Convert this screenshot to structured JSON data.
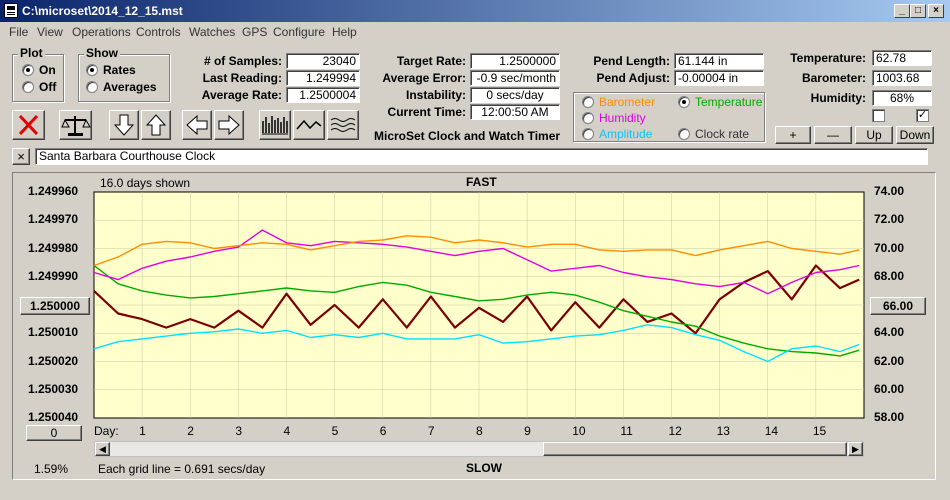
{
  "window": {
    "title": "C:\\microset\\2014_12_15.mst"
  },
  "menu": [
    "File",
    "View",
    "Operations",
    "Controls",
    "Watches",
    "GPS",
    "Configure",
    "Help"
  ],
  "plot": {
    "label": "Plot",
    "on": "On",
    "off": "Off",
    "selected": "On"
  },
  "show": {
    "label": "Show",
    "rates": "Rates",
    "averages": "Averages",
    "selected": "Rates"
  },
  "stats": {
    "samples_label": "# of Samples:",
    "samples": "23040",
    "last_label": "Last Reading:",
    "last": "1.249994",
    "avg_label": "Average Rate:",
    "avg": "1.2500004"
  },
  "rates": {
    "target_label": "Target Rate:",
    "target": "1.2500000",
    "error_label": "Average Error:",
    "error": "-0.9 sec/month",
    "instab_label": "Instability:",
    "instab": "0 secs/day",
    "time_label": "Current Time:",
    "time": "12:00:50 AM"
  },
  "app_title": "MicroSet Clock and Watch Timer",
  "pend": {
    "length_label": "Pend Length:",
    "length": "61.144 in",
    "adjust_label": "Pend Adjust:",
    "adjust": "-0.00004 in"
  },
  "sensor_options": {
    "barometer": "Barometer",
    "temperature": "Temperature",
    "humidity": "Humidity",
    "amplitude": "Amplitude",
    "clock_rate": "Clock rate",
    "selected": "Temperature"
  },
  "env": {
    "temp_label": "Temperature:",
    "temp": "62.78",
    "baro_label": "Barometer:",
    "baro": "1003.68",
    "hum_label": "Humidity:",
    "hum": "68%"
  },
  "env_buttons": {
    "plus": "+",
    "minus": "—",
    "up": "Up",
    "down": "Down"
  },
  "watch_name": "Santa Barbara Courthouse Clock",
  "close_x": "×",
  "chart_texts": {
    "days_shown": "16.0 days shown",
    "fast": "FAST",
    "slow": "SLOW",
    "grid_note": "Each grid line = 0.691 secs/day",
    "percent": "1.59%",
    "day_prefix": "Day:",
    "left_center_button": "1.250000",
    "right_center_button": "66.00",
    "bottom_left_button": "0"
  },
  "colors": {
    "rate": "#7a0000",
    "temperature": "#00aa00",
    "humidity": "#e000e0",
    "barometer": "#ff8c00",
    "amplitude": "#00e0ff",
    "plot_bg": "#ffffcc"
  },
  "chart_data": {
    "type": "line",
    "x_label": "Day",
    "x_ticks": [
      1,
      2,
      3,
      4,
      5,
      6,
      7,
      8,
      9,
      10,
      11,
      12,
      13,
      14,
      15
    ],
    "xlim": [
      0,
      16
    ],
    "y_left_ticks": [
      "1.249960",
      "1.249970",
      "1.249980",
      "1.249990",
      "1.250000",
      "1.250010",
      "1.250020",
      "1.250030",
      "1.250040"
    ],
    "y_left_lim": [
      1.24996,
      1.25004
    ],
    "y_left_inverted": true,
    "y_right_ticks": [
      "74.00",
      "72.00",
      "70.00",
      "68.00",
      "66.00",
      "64.00",
      "62.00",
      "60.00",
      "58.00"
    ],
    "y_right_lim": [
      58,
      74
    ],
    "series": [
      {
        "name": "Rate",
        "axis": "left",
        "x": [
          0,
          0.5,
          1,
          1.5,
          2,
          2.5,
          3,
          3.5,
          4,
          4.5,
          5,
          5.5,
          6,
          6.5,
          7,
          7.5,
          8,
          8.5,
          9,
          9.5,
          10,
          10.5,
          11,
          11.5,
          12,
          12.5,
          13,
          13.5,
          14,
          14.5,
          15,
          15.5,
          15.9
        ],
        "y": [
          1.249995,
          1.250003,
          1.250005,
          1.250008,
          1.250005,
          1.250008,
          1.250002,
          1.250008,
          1.249996,
          1.250007,
          1.25,
          1.250008,
          1.249998,
          1.250008,
          1.249997,
          1.250008,
          1.250001,
          1.250006,
          1.249997,
          1.250009,
          1.249999,
          1.250008,
          1.249998,
          1.250006,
          1.250003,
          1.25001,
          1.249998,
          1.249992,
          1.249988,
          1.249998,
          1.249986,
          1.249994,
          1.249991
        ]
      },
      {
        "name": "Temperature",
        "axis": "right",
        "x": [
          0,
          0.5,
          1,
          1.5,
          2,
          2.5,
          3,
          3.5,
          4,
          4.5,
          5,
          5.5,
          6,
          6.5,
          7,
          7.5,
          8,
          8.5,
          9,
          9.5,
          10,
          10.5,
          11,
          11.5,
          12,
          12.5,
          13,
          13.5,
          14,
          14.5,
          15,
          15.5,
          15.9
        ],
        "y": [
          68.8,
          67.5,
          67.0,
          66.7,
          66.5,
          66.6,
          66.8,
          67.0,
          67.2,
          67.0,
          66.9,
          67.3,
          67.6,
          67.4,
          66.9,
          66.6,
          66.3,
          66.4,
          66.7,
          66.9,
          66.7,
          66.2,
          65.6,
          65.2,
          64.8,
          64.5,
          63.8,
          63.3,
          62.9,
          62.7,
          62.6,
          62.4,
          62.8
        ]
      },
      {
        "name": "Humidity",
        "axis": "right",
        "x": [
          0,
          0.5,
          1,
          1.5,
          2,
          2.5,
          3,
          3.5,
          4,
          4.5,
          5,
          5.5,
          6,
          6.5,
          7,
          7.5,
          8,
          8.5,
          9,
          9.5,
          10,
          10.5,
          11,
          11.5,
          12,
          12.5,
          13,
          13.5,
          14,
          14.5,
          15,
          15.5,
          15.9
        ],
        "y": [
          68.3,
          67.8,
          68.6,
          69.1,
          69.4,
          69.8,
          70.1,
          71.3,
          70.4,
          70.2,
          70.5,
          70.4,
          70.3,
          70.1,
          69.8,
          69.5,
          69.8,
          70.0,
          69.2,
          68.4,
          68.6,
          68.8,
          68.3,
          68.0,
          67.8,
          67.5,
          67.3,
          67.6,
          66.8,
          67.6,
          68.3,
          68.5,
          68.8
        ]
      },
      {
        "name": "Barometer",
        "axis": "right",
        "x": [
          0,
          0.5,
          1,
          1.5,
          2,
          2.5,
          3,
          3.5,
          4,
          4.5,
          5,
          5.5,
          6,
          6.5,
          7,
          7.5,
          8,
          8.5,
          9,
          9.5,
          10,
          10.5,
          11,
          11.5,
          12,
          12.5,
          13,
          13.5,
          14,
          14.5,
          15,
          15.5,
          15.9
        ],
        "y": [
          68.8,
          69.4,
          70.3,
          70.5,
          70.4,
          70.0,
          70.2,
          70.4,
          70.3,
          69.9,
          70.2,
          70.5,
          70.6,
          70.9,
          70.8,
          70.4,
          70.6,
          70.4,
          70.1,
          70.3,
          70.3,
          69.9,
          69.8,
          69.9,
          69.9,
          69.5,
          69.9,
          70.2,
          70.5,
          70.0,
          69.8,
          69.6,
          69.9
        ]
      },
      {
        "name": "Amplitude",
        "axis": "right",
        "x": [
          0,
          0.5,
          1,
          1.5,
          2,
          2.5,
          3,
          3.5,
          4,
          4.5,
          5,
          5.5,
          6,
          6.5,
          7,
          7.5,
          8,
          8.5,
          9,
          9.5,
          10,
          10.5,
          11,
          11.5,
          12,
          12.5,
          13,
          13.5,
          14,
          14.5,
          15,
          15.5,
          15.9
        ],
        "y": [
          62.9,
          63.4,
          63.6,
          63.8,
          64.0,
          64.1,
          64.3,
          64.0,
          64.2,
          63.7,
          63.9,
          63.7,
          64.0,
          63.6,
          63.6,
          63.6,
          63.9,
          63.3,
          63.4,
          63.6,
          63.8,
          63.9,
          64.2,
          64.6,
          64.4,
          63.9,
          63.5,
          62.7,
          62.0,
          62.9,
          63.1,
          62.7,
          63.2
        ]
      }
    ]
  }
}
